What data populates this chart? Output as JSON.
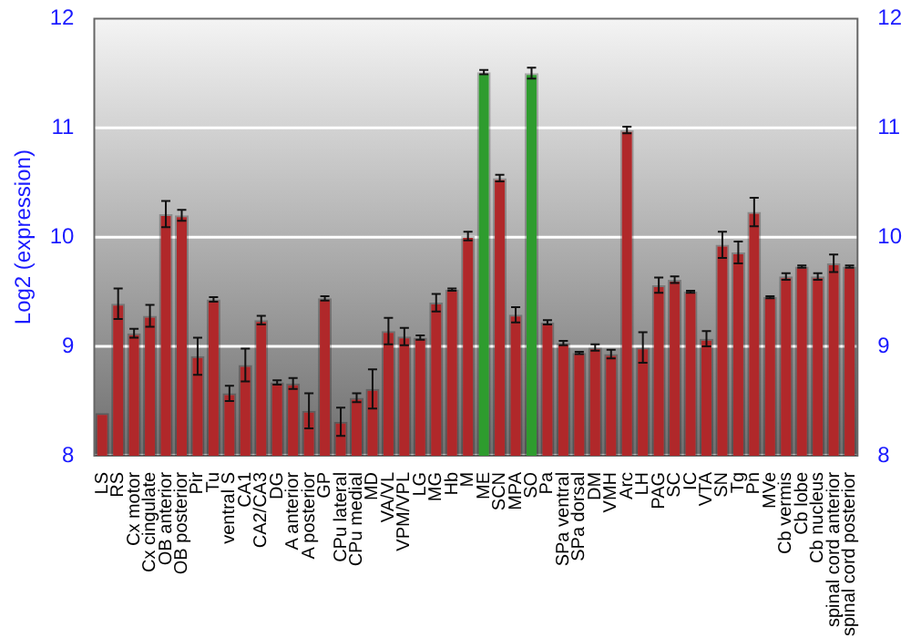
{
  "chart_data": {
    "type": "bar",
    "ylabel": "Log2 (expression)",
    "categories": [
      "LS",
      "RS",
      "Cx motor",
      "Cx cingulate",
      "OB anterior",
      "OB posterior",
      "Pir",
      "Tu",
      "ventral S",
      "CA1",
      "CA2/CA3",
      "DG",
      "A anterior",
      "A posterior",
      "GP",
      "CPu lateral",
      "CPu medial",
      "MD",
      "VA/VL",
      "VPM/VPL",
      "LG",
      "MG",
      "Hb",
      "M",
      "ME",
      "SCN",
      "MPA",
      "SO",
      "Pa",
      "SPa ventral",
      "SPa dorsal",
      "DM",
      "VMH",
      "Arc",
      "LH",
      "PAG",
      "SC",
      "IC",
      "VTA",
      "SN",
      "Tg",
      "Pn",
      "MVe",
      "Cb vermis",
      "Cb lobe",
      "Cb nucleus",
      "spinal cord anterior",
      "spinal cord posterior"
    ],
    "values": [
      8.39,
      9.39,
      9.12,
      9.28,
      10.21,
      10.2,
      8.91,
      9.43,
      8.57,
      8.83,
      9.24,
      8.67,
      8.66,
      8.41,
      9.44,
      8.31,
      8.53,
      8.61,
      9.14,
      9.09,
      9.08,
      9.4,
      9.52,
      10.01,
      11.51,
      10.54,
      9.29,
      11.5,
      9.22,
      9.03,
      8.94,
      8.99,
      8.93,
      10.98,
      8.99,
      9.56,
      9.61,
      9.5,
      9.07,
      9.93,
      9.86,
      10.23,
      9.45,
      9.64,
      9.73,
      9.64,
      9.76,
      9.73
    ],
    "errors": [
      null,
      0.14,
      0.04,
      0.1,
      0.12,
      0.05,
      0.17,
      0.02,
      0.07,
      0.15,
      0.04,
      0.02,
      0.05,
      0.16,
      0.02,
      0.13,
      0.04,
      0.18,
      0.12,
      0.08,
      0.02,
      0.08,
      0.01,
      0.04,
      0.02,
      0.03,
      0.07,
      0.05,
      0.02,
      0.02,
      0.01,
      0.03,
      0.04,
      0.03,
      0.14,
      0.07,
      0.03,
      0.01,
      0.07,
      0.12,
      0.1,
      0.13,
      0.01,
      0.03,
      0.01,
      0.03,
      0.08,
      0.01
    ],
    "colors": [
      "#b0282a",
      "#b0282a",
      "#b0282a",
      "#b0282a",
      "#b0282a",
      "#b0282a",
      "#b0282a",
      "#b0282a",
      "#b0282a",
      "#b0282a",
      "#b0282a",
      "#b0282a",
      "#b0282a",
      "#b0282a",
      "#b0282a",
      "#b0282a",
      "#b0282a",
      "#b0282a",
      "#b0282a",
      "#b0282a",
      "#b0282a",
      "#b0282a",
      "#b0282a",
      "#b0282a",
      "#2e9c2e",
      "#b0282a",
      "#b0282a",
      "#2e9c2e",
      "#b0282a",
      "#b0282a",
      "#b0282a",
      "#b0282a",
      "#b0282a",
      "#b0282a",
      "#b0282a",
      "#b0282a",
      "#b0282a",
      "#b0282a",
      "#b0282a",
      "#b0282a",
      "#b0282a",
      "#b0282a",
      "#b0282a",
      "#b0282a",
      "#b0282a",
      "#b0282a",
      "#b0282a",
      "#b0282a"
    ],
    "ylim": [
      8,
      12
    ],
    "yticks": [
      8,
      9,
      10,
      11,
      12
    ],
    "y2lim": [
      8,
      12
    ],
    "y2ticks": [
      8,
      9,
      10,
      11,
      12
    ],
    "grid": "y",
    "legend": false
  }
}
